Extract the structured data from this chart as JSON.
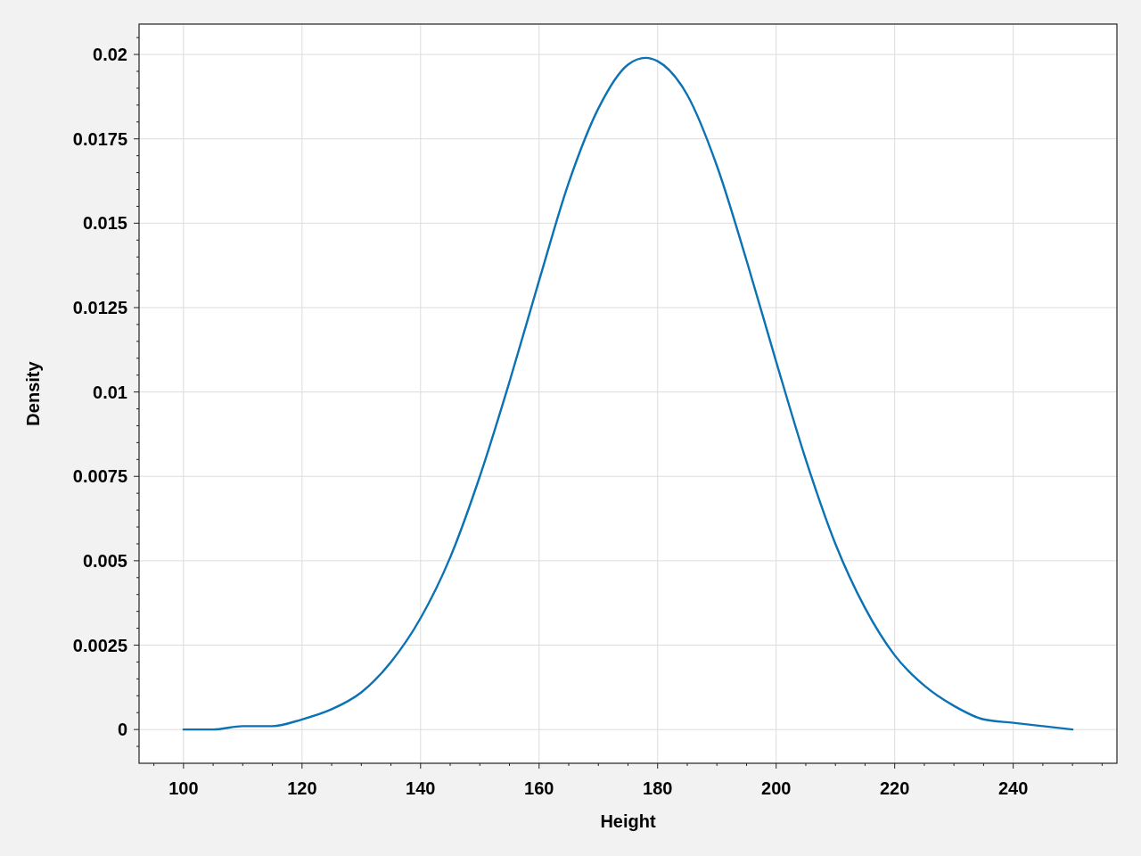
{
  "chart_data": {
    "type": "line",
    "xlabel": "Height",
    "ylabel": "Density",
    "x": [
      100,
      105,
      110,
      115,
      120,
      125,
      130,
      135,
      140,
      145,
      150,
      155,
      160,
      165,
      170,
      175,
      178,
      180,
      185,
      190,
      195,
      200,
      205,
      210,
      215,
      220,
      225,
      230,
      235,
      240,
      245,
      250
    ],
    "series": [
      {
        "color": "#0b72b4",
        "values": [
          0,
          0,
          0.0001,
          0.0001,
          0.0003,
          0.0006,
          0.0011,
          0.002,
          0.0033,
          0.0051,
          0.0075,
          0.0103,
          0.0133,
          0.0162,
          0.0184,
          0.0197,
          0.0199,
          0.0198,
          0.0188,
          0.0167,
          0.0139,
          0.0109,
          0.008,
          0.0055,
          0.0036,
          0.0022,
          0.0013,
          0.0007,
          0.0003,
          0.0002,
          0.0001,
          0
        ]
      }
    ],
    "xlim": [
      92.5,
      257.5
    ],
    "ylim": [
      -0.001,
      0.0209
    ],
    "xticks": [
      {
        "value": 95,
        "label": null
      },
      100,
      {
        "value": 105,
        "label": null
      },
      {
        "value": 110,
        "label": null
      },
      {
        "value": 115,
        "label": null
      },
      120,
      {
        "value": 125,
        "label": null
      },
      {
        "value": 130,
        "label": null
      },
      {
        "value": 135,
        "label": null
      },
      140,
      {
        "value": 145,
        "label": null
      },
      {
        "value": 150,
        "label": null
      },
      {
        "value": 155,
        "label": null
      },
      160,
      {
        "value": 165,
        "label": null
      },
      {
        "value": 170,
        "label": null
      },
      {
        "value": 175,
        "label": null
      },
      180,
      {
        "value": 185,
        "label": null
      },
      {
        "value": 190,
        "label": null
      },
      {
        "value": 195,
        "label": null
      },
      200,
      {
        "value": 205,
        "label": null
      },
      {
        "value": 210,
        "label": null
      },
      {
        "value": 215,
        "label": null
      },
      220,
      {
        "value": 225,
        "label": null
      },
      {
        "value": 230,
        "label": null
      },
      {
        "value": 235,
        "label": null
      },
      240,
      {
        "value": 245,
        "label": null
      },
      {
        "value": 250,
        "label": null
      },
      {
        "value": 255,
        "label": null
      }
    ],
    "yticks": [
      {
        "value": -0.0005,
        "label": null
      },
      0,
      {
        "value": 0.0005,
        "label": null
      },
      {
        "value": 0.001,
        "label": null
      },
      {
        "value": 0.0015,
        "label": null
      },
      {
        "value": 0.002,
        "label": null
      },
      0.0025,
      {
        "value": 0.003,
        "label": null
      },
      {
        "value": 0.0035,
        "label": null
      },
      {
        "value": 0.004,
        "label": null
      },
      {
        "value": 0.0045,
        "label": null
      },
      0.005,
      {
        "value": 0.0055,
        "label": null
      },
      {
        "value": 0.006,
        "label": null
      },
      {
        "value": 0.0065,
        "label": null
      },
      {
        "value": 0.007,
        "label": null
      },
      0.0075,
      {
        "value": 0.008,
        "label": null
      },
      {
        "value": 0.0085,
        "label": null
      },
      {
        "value": 0.009,
        "label": null
      },
      {
        "value": 0.0095,
        "label": null
      },
      0.01,
      {
        "value": 0.0105,
        "label": null
      },
      {
        "value": 0.011,
        "label": null
      },
      {
        "value": 0.0115,
        "label": null
      },
      {
        "value": 0.012,
        "label": null
      },
      0.0125,
      {
        "value": 0.013,
        "label": null
      },
      {
        "value": 0.0135,
        "label": null
      },
      {
        "value": 0.014,
        "label": null
      },
      {
        "value": 0.0145,
        "label": null
      },
      0.015,
      {
        "value": 0.0155,
        "label": null
      },
      {
        "value": 0.016,
        "label": null
      },
      {
        "value": 0.0165,
        "label": null
      },
      {
        "value": 0.017,
        "label": null
      },
      0.0175,
      {
        "value": 0.018,
        "label": null
      },
      {
        "value": 0.0185,
        "label": null
      },
      {
        "value": 0.019,
        "label": null
      },
      {
        "value": 0.0195,
        "label": null
      },
      0.02,
      {
        "value": 0.0205,
        "label": null
      }
    ],
    "grid": true,
    "marker": "none",
    "line_style": "solid"
  }
}
